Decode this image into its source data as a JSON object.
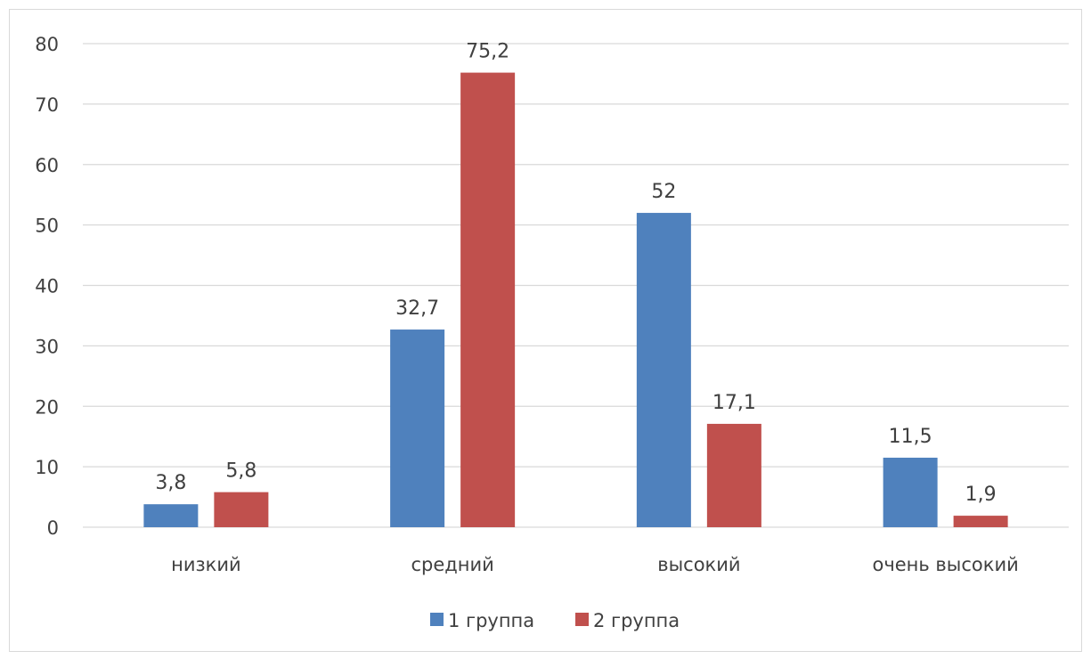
{
  "chart_data": {
    "type": "bar",
    "categories": [
      "низкий",
      "средний",
      "высокий",
      "очень высокий"
    ],
    "series": [
      {
        "name": "1 группа",
        "color": "#4f81bd",
        "values": [
          3.8,
          32.7,
          52,
          11.5
        ],
        "labels": [
          "3,8",
          "32,7",
          "52",
          "11,5"
        ]
      },
      {
        "name": "2 группа",
        "color": "#c0504d",
        "values": [
          5.8,
          75.2,
          17.1,
          1.9
        ],
        "labels": [
          "5,8",
          "75,2",
          "17,1",
          "1,9"
        ]
      }
    ],
    "ylim": [
      0,
      80
    ],
    "yticks": [
      0,
      10,
      20,
      30,
      40,
      50,
      60,
      70,
      80
    ],
    "grid": true,
    "legend": "bottom"
  }
}
